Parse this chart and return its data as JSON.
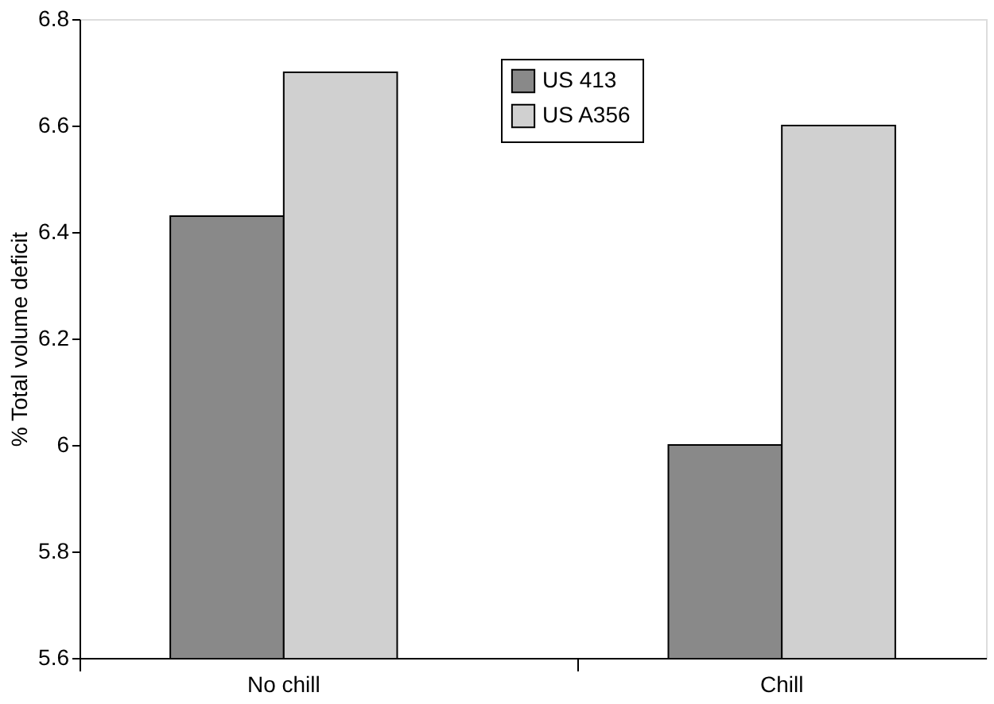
{
  "chart_data": {
    "type": "bar",
    "ylabel": "% Total volume deficit",
    "categories": [
      "No chill",
      "Chill"
    ],
    "series": [
      {
        "name": "US 413",
        "color": "#898989",
        "values": [
          6.43,
          6.0
        ]
      },
      {
        "name": "US A356",
        "color": "#d0d0d0",
        "values": [
          6.7,
          6.6
        ]
      }
    ],
    "ylim": [
      5.6,
      6.8
    ],
    "yticks": [
      5.6,
      5.8,
      6,
      6.2,
      6.4,
      6.6,
      6.8
    ],
    "grid": false,
    "legend": "top right"
  }
}
